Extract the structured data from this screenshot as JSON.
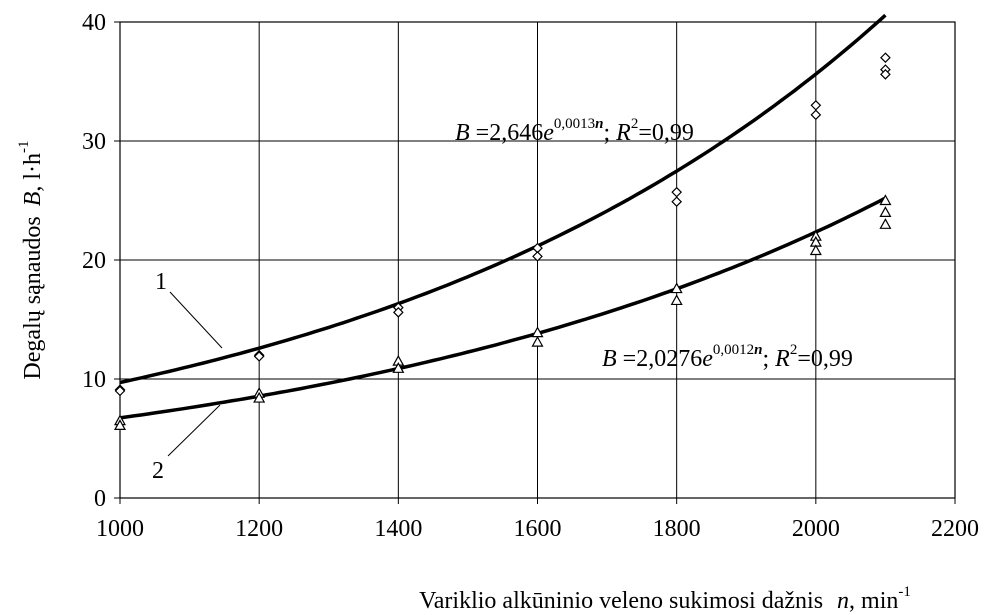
{
  "chart_data": {
    "type": "scatter",
    "title": "",
    "xlabel": "Variklio alkūninio veleno sukimosi dažnis",
    "xlabel_symbol": "n",
    "xlabel_unit": ", min",
    "xlabel_unit_sup": "-1",
    "ylabel": "Degalų sąnaudos",
    "ylabel_symbol": "B",
    "ylabel_unit": ", l·h",
    "ylabel_unit_sup": "-1",
    "xlim": [
      1000,
      2200
    ],
    "ylim": [
      0,
      40
    ],
    "xticks": [
      "1000",
      "1200",
      "1400",
      "1600",
      "1800",
      "2000",
      "2200"
    ],
    "yticks": [
      "0",
      "10",
      "20",
      "30",
      "40"
    ],
    "grid": true,
    "legend": "none",
    "series": [
      {
        "label": "1",
        "marker": "diamond",
        "points": [
          {
            "x": 1000,
            "y": 9.1
          },
          {
            "x": 1000,
            "y": 9.0
          },
          {
            "x": 1200,
            "y": 12.0
          },
          {
            "x": 1200,
            "y": 11.9
          },
          {
            "x": 1400,
            "y": 16.0
          },
          {
            "x": 1400,
            "y": 15.6
          },
          {
            "x": 1600,
            "y": 21.0
          },
          {
            "x": 1600,
            "y": 20.3
          },
          {
            "x": 1800,
            "y": 25.7
          },
          {
            "x": 1800,
            "y": 24.9
          },
          {
            "x": 2000,
            "y": 33.0
          },
          {
            "x": 2000,
            "y": 32.2
          },
          {
            "x": 2100,
            "y": 37.0
          },
          {
            "x": 2100,
            "y": 36.0
          },
          {
            "x": 2100,
            "y": 35.6
          }
        ],
        "fit": {
          "a": 2.646,
          "b": 0.0013
        },
        "equation": {
          "lead": "B",
          "text": " =2,646",
          "e": "e",
          "exp": "0,0013",
          "expvar": "n",
          "sep": ";  ",
          "r": "R",
          "rsup": "2",
          "rtext": "=0,99"
        }
      },
      {
        "label": "2",
        "marker": "triangle",
        "points": [
          {
            "x": 1000,
            "y": 6.5
          },
          {
            "x": 1000,
            "y": 6.1
          },
          {
            "x": 1200,
            "y": 8.8
          },
          {
            "x": 1200,
            "y": 8.4
          },
          {
            "x": 1400,
            "y": 11.5
          },
          {
            "x": 1400,
            "y": 10.9
          },
          {
            "x": 1600,
            "y": 13.9
          },
          {
            "x": 1600,
            "y": 13.1
          },
          {
            "x": 1800,
            "y": 17.6
          },
          {
            "x": 1800,
            "y": 16.6
          },
          {
            "x": 2000,
            "y": 22.0
          },
          {
            "x": 2000,
            "y": 21.5
          },
          {
            "x": 2000,
            "y": 20.8
          },
          {
            "x": 2100,
            "y": 25.0
          },
          {
            "x": 2100,
            "y": 24.0
          },
          {
            "x": 2100,
            "y": 23.0
          }
        ],
        "fit": {
          "a": 2.0276,
          "b": 0.0012
        },
        "equation": {
          "lead": "B",
          "text": " =2,0276",
          "e": "e",
          "exp": "0,0012",
          "expvar": "n",
          "sep": ";  ",
          "r": "R",
          "rsup": "2",
          "rtext": "=0,99"
        }
      }
    ]
  }
}
